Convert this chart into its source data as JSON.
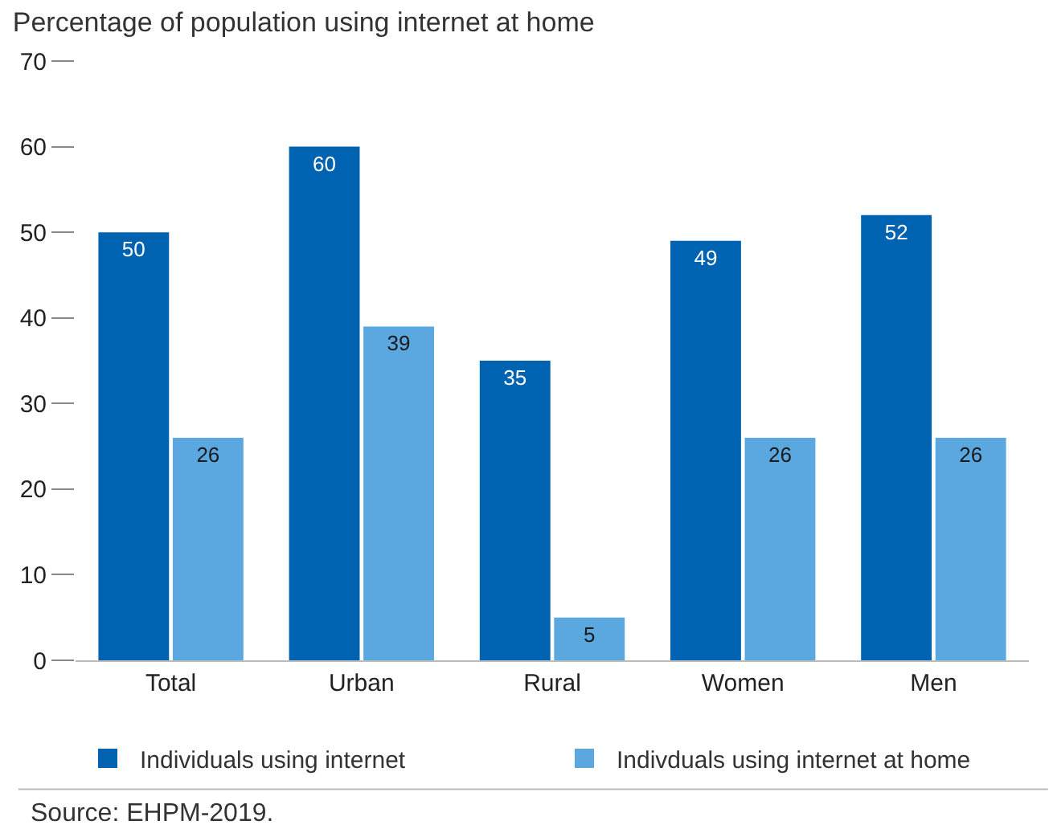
{
  "chart_data": {
    "type": "bar",
    "title": "Percentage of population using internet at home",
    "categories": [
      "Total",
      "Urban",
      "Rural",
      "Women",
      "Men"
    ],
    "series": [
      {
        "name": "Individuals using internet",
        "color": "#0063b1",
        "values": [
          50,
          60,
          35,
          49,
          52
        ]
      },
      {
        "name": "Indivduals using internet at home",
        "color": "#5ba8e0",
        "values": [
          26,
          39,
          5,
          26,
          26
        ]
      }
    ],
    "ylim": [
      0,
      70
    ],
    "yticks": [
      0,
      10,
      20,
      30,
      40,
      50,
      60,
      70
    ],
    "data_labels": true,
    "legend": "bottom",
    "annotations": [
      "Source: EHPM-2019."
    ]
  }
}
